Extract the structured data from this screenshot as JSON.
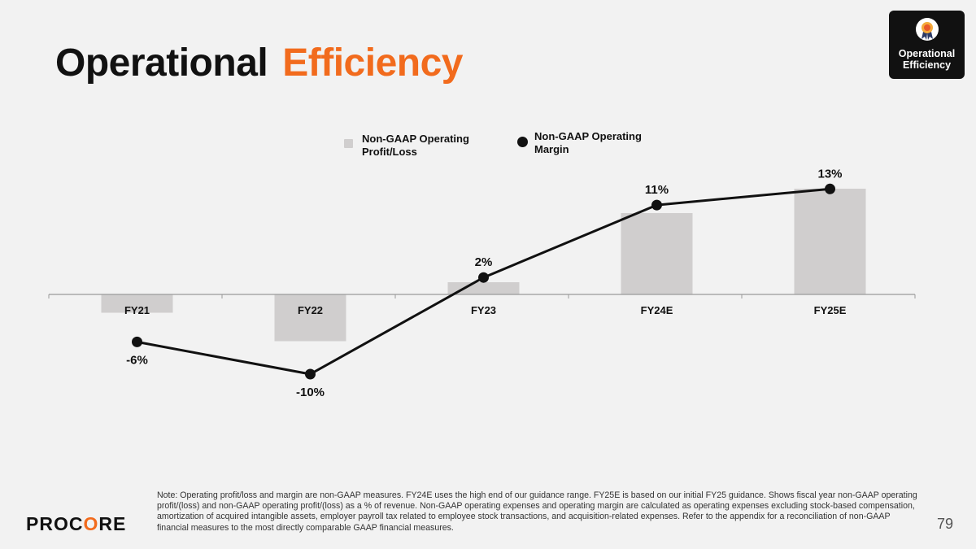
{
  "slide": {
    "title_part1": "Operational",
    "title_part2": "Efficiency",
    "badge_label": "Operational Efficiency",
    "footnote": "Note: Operating profit/loss and margin are non-GAAP measures. FY24E uses the high end of our guidance range. FY25E is based on our initial FY25 guidance. Shows fiscal year non-GAAP operating profit/(loss) and non-GAAP operating profit/(loss) as a % of revenue. Non-GAAP operating expenses and operating margin are calculated as operating expenses excluding stock-based compensation, amortization of acquired intangible assets, employer payroll tax related to employee stock transactions, and acquisition-related expenses. Refer to the appendix for a reconciliation of non-GAAP financial measures to the most directly comparable GAAP financial measures.",
    "logo_text_a": "PROC",
    "logo_text_b": "O",
    "logo_text_c": "RE",
    "page_number": "79",
    "colors": {
      "accent": "#f26b1d",
      "bar": "#d0cece",
      "line": "#111111"
    }
  },
  "chart_data": {
    "type": "bar",
    "categories": [
      "FY21",
      "FY22",
      "FY23",
      "FY24E",
      "FY25E"
    ],
    "series": [
      {
        "name": "Non-GAAP Operating Profit/Loss",
        "kind": "bar",
        "values": [
          -9,
          -23,
          6,
          40,
          52
        ]
      },
      {
        "name": "Non-GAAP Operating Margin",
        "kind": "line",
        "values": [
          -6,
          -10,
          2,
          11,
          13
        ],
        "labels": [
          "-6%",
          "-10%",
          "2%",
          "11%",
          "13%"
        ]
      }
    ],
    "legend": [
      "Non-GAAP Operating Profit/Loss",
      "Non-GAAP Operating Margin"
    ],
    "legend_position": "top",
    "title": "",
    "xlabel": "",
    "ylabel": ""
  }
}
